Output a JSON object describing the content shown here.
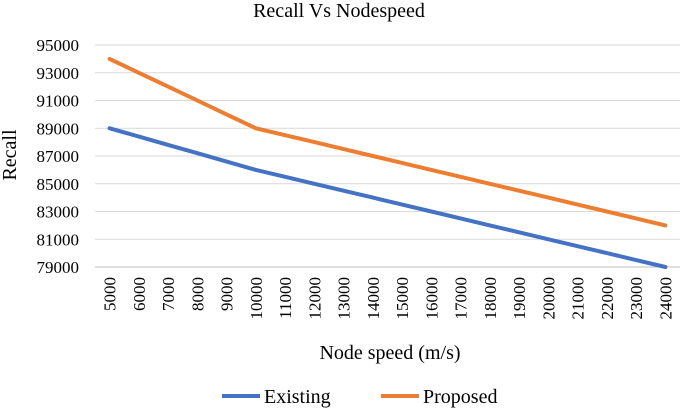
{
  "chart_data": {
    "type": "line",
    "title": "Recall Vs Nodespeed",
    "xlabel": "Node speed (m/s)",
    "ylabel": "Recall",
    "x": [
      5000,
      6000,
      7000,
      8000,
      9000,
      10000,
      11000,
      12000,
      13000,
      14000,
      15000,
      16000,
      17000,
      18000,
      19000,
      20000,
      21000,
      22000,
      23000,
      24000
    ],
    "ylim": [
      79000,
      95000
    ],
    "yticks": [
      79000,
      81000,
      83000,
      85000,
      87000,
      89000,
      91000,
      93000,
      95000
    ],
    "grid": true,
    "legend_position": "bottom",
    "series": [
      {
        "name": "Existing",
        "color": "#4472C4",
        "values": [
          89000,
          88400,
          87800,
          87200,
          86600,
          86000,
          85500,
          85000,
          84500,
          84000,
          83500,
          83000,
          82500,
          82000,
          81500,
          81000,
          80500,
          80000,
          79500,
          79000
        ]
      },
      {
        "name": "Proposed",
        "color": "#ED7D31",
        "values": [
          94000,
          93000,
          92000,
          91000,
          90000,
          89000,
          88500,
          88000,
          87500,
          87000,
          86500,
          86000,
          85500,
          85000,
          84500,
          84000,
          83500,
          83000,
          82500,
          82000
        ]
      }
    ]
  }
}
